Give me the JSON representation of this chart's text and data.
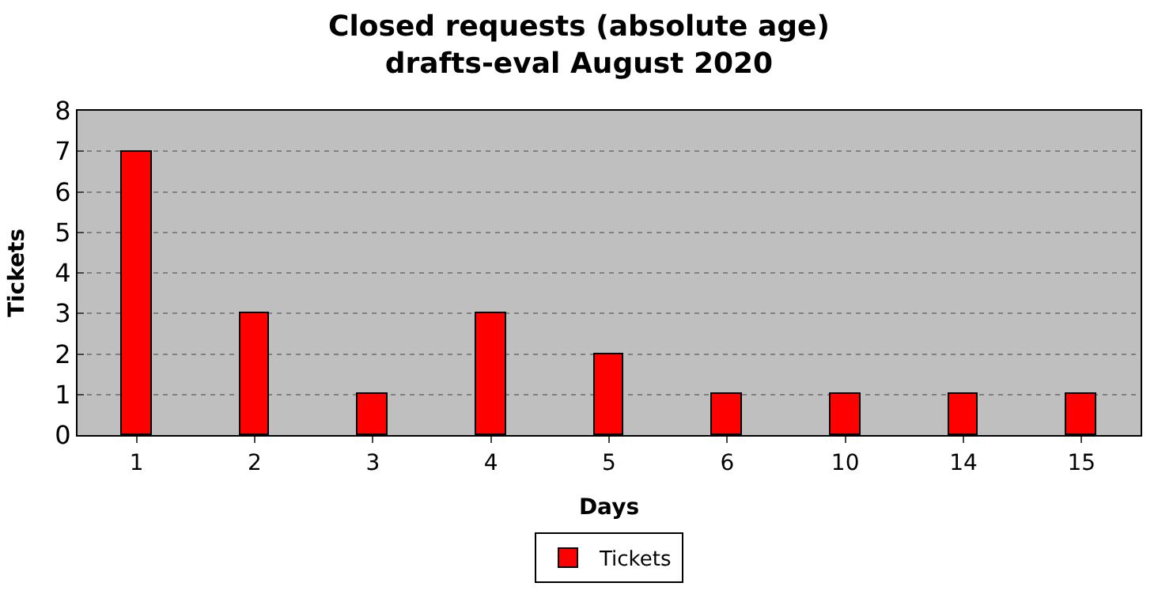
{
  "chart_data": {
    "type": "bar",
    "title": "Closed requests (absolute age)\ndrafts-eval August 2020",
    "xlabel": "Days",
    "ylabel": "Tickets",
    "categories": [
      "1",
      "2",
      "3",
      "4",
      "5",
      "6",
      "10",
      "14",
      "15"
    ],
    "series": [
      {
        "name": "Tickets",
        "color": "#ff0000",
        "values": [
          7,
          3,
          1,
          3,
          2,
          1,
          1,
          1,
          1
        ]
      }
    ],
    "ylim": [
      0,
      8
    ],
    "yticks": [
      0,
      1,
      2,
      3,
      4,
      5,
      6,
      7,
      8
    ],
    "grid": "y",
    "legend": "bottom"
  }
}
